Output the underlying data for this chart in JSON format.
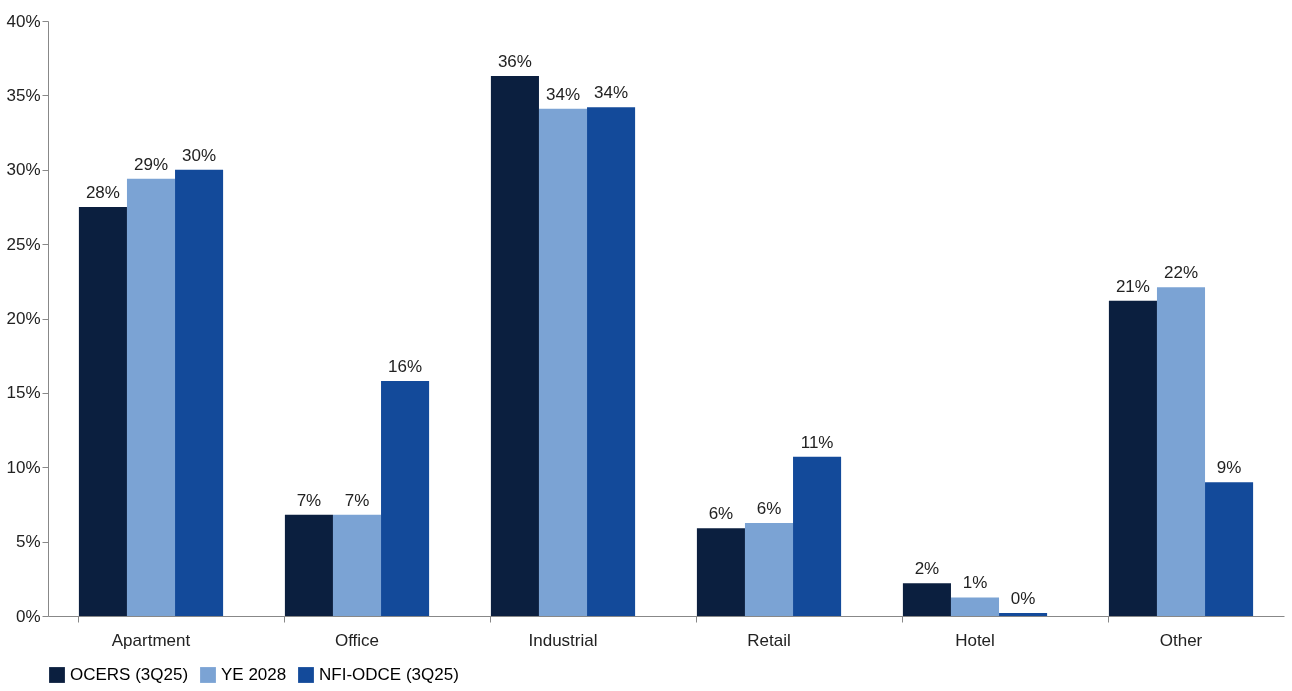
{
  "chart_data": {
    "type": "bar",
    "categories": [
      "Apartment",
      "Office",
      "Industrial",
      "Retail",
      "Hotel",
      "Other"
    ],
    "series": [
      {
        "name": "OCERS (3Q25)",
        "color": "#0b1f3f",
        "values": [
          27.5,
          6.8,
          36.3,
          5.9,
          2.2,
          21.2
        ],
        "value_labels": [
          "28%",
          "7%",
          "36%",
          "6%",
          "2%",
          "21%"
        ]
      },
      {
        "name": "YE 2028",
        "color": "#7ba3d4",
        "values": [
          29.4,
          6.8,
          34.1,
          6.25,
          1.25,
          22.1
        ],
        "value_labels": [
          "29%",
          "7%",
          "34%",
          "6%",
          "1%",
          "22%"
        ]
      },
      {
        "name": "NFI-ODCE (3Q25)",
        "color": "#134a9a",
        "values": [
          30.0,
          15.8,
          34.2,
          10.7,
          0.2,
          9.0
        ],
        "value_labels": [
          "30%",
          "16%",
          "34%",
          "11%",
          "0%",
          "9%"
        ]
      }
    ],
    "ylim": [
      0,
      40
    ],
    "yticks": [
      {
        "value": 0,
        "label": "0%"
      },
      {
        "value": 5,
        "label": "5%"
      },
      {
        "value": 10,
        "label": "10%"
      },
      {
        "value": 15,
        "label": "15%"
      },
      {
        "value": 20,
        "label": "20%"
      },
      {
        "value": 25,
        "label": "25%"
      },
      {
        "value": 30,
        "label": "30%"
      },
      {
        "value": 35,
        "label": "35%"
      },
      {
        "value": 40,
        "label": "40%"
      }
    ],
    "grid": false,
    "legend": "bottom"
  }
}
